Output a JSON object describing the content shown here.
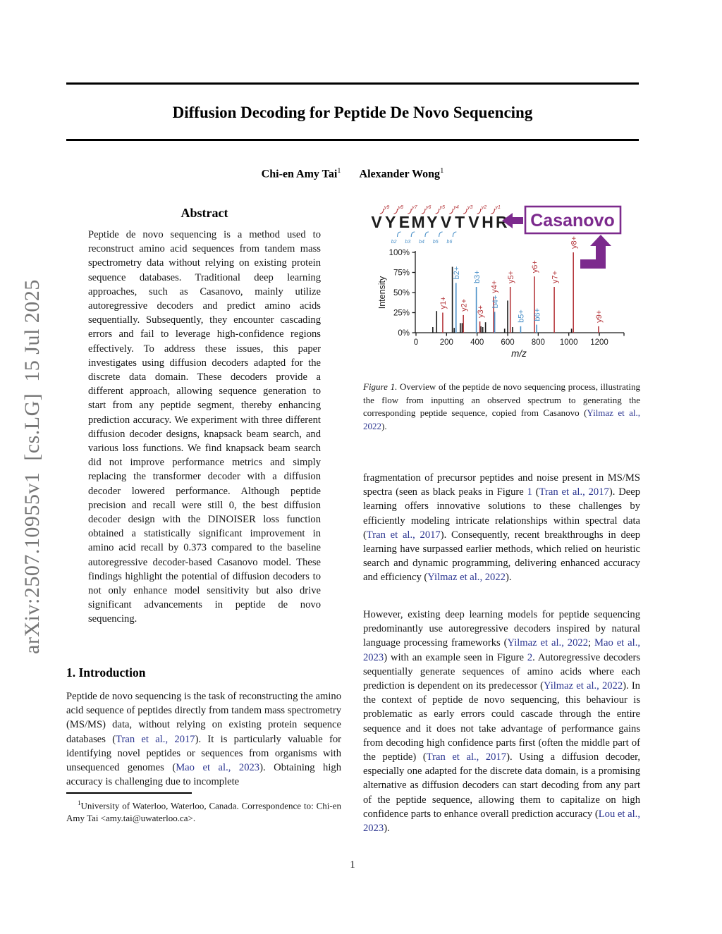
{
  "page": {
    "arxiv_watermark": "arXiv:2507.10955v1  [cs.LG]  15 Jul 2025",
    "page_number": "1"
  },
  "header": {
    "title": "Diffusion Decoding for Peptide De Novo Sequencing",
    "authors": [
      {
        "name": "Chi-en Amy Tai",
        "affiliation_mark": "1"
      },
      {
        "name": "Alexander Wong",
        "affiliation_mark": "1"
      }
    ]
  },
  "abstract": {
    "heading": "Abstract",
    "text": "Peptide de novo sequencing is a method used to reconstruct amino acid sequences from tandem mass spectrometry data without relying on existing protein sequence databases. Traditional deep learning approaches, such as Casanovo, mainly utilize autoregressive decoders and predict amino acids sequentially. Subsequently, they encounter cascading errors and fail to leverage high-confidence regions effectively. To address these issues, this paper investigates using diffusion decoders adapted for the discrete data domain. These decoders provide a different approach, allowing sequence generation to start from any peptide segment, thereby enhancing prediction accuracy. We experiment with three different diffusion decoder designs, knapsack beam search, and various loss functions. We find knapsack beam search did not improve performance metrics and simply replacing the transformer decoder with a diffusion decoder lowered performance. Although peptide precision and recall were still 0, the best diffusion decoder design with the DINOISER loss function obtained a statistically significant improvement in amino acid recall by 0.373 compared to the baseline autoregressive decoder-based Casanovo model. These findings highlight the potential of diffusion decoders to not only enhance model sensitivity but also drive significant advancements in peptide de novo sequencing."
  },
  "intro": {
    "heading": "1. Introduction",
    "p1": [
      {
        "t": "Peptide de novo sequencing is the task of reconstructing the amino acid sequence of peptides directly from tandem mass spectrometry (MS/MS) data, without relying on existing protein sequence databases ("
      },
      {
        "t": "Tran et al., 2017",
        "c": true
      },
      {
        "t": "). It is particularly valuable for identifying novel peptides or sequences from organisms with unsequenced genomes ("
      },
      {
        "t": "Mao et al., 2023",
        "c": true
      },
      {
        "t": "). Obtaining high accuracy is challenging due to incomplete"
      }
    ],
    "p2": [
      {
        "t": "fragmentation of precursor peptides and noise present in MS/MS spectra (seen as black peaks in Figure "
      },
      {
        "t": "1",
        "c": true
      },
      {
        "t": " ("
      },
      {
        "t": "Tran et al., 2017",
        "c": true
      },
      {
        "t": "). Deep learning offers innovative solutions to these challenges by efficiently modeling intricate relationships within spectral data ("
      },
      {
        "t": "Tran et al., 2017",
        "c": true
      },
      {
        "t": "). Consequently, recent breakthroughs in deep learning have surpassed earlier methods, which relied on heuristic search and dynamic programming, delivering enhanced accuracy and efficiency ("
      },
      {
        "t": "Yilmaz et al., 2022",
        "c": true
      },
      {
        "t": ")."
      }
    ],
    "p3": [
      {
        "t": "However, existing deep learning models for peptide sequencing predominantly use autoregressive decoders inspired by natural language processing frameworks ("
      },
      {
        "t": "Yilmaz et al., 2022",
        "c": true
      },
      {
        "t": "; "
      },
      {
        "t": "Mao et al., 2023",
        "c": true
      },
      {
        "t": ") with an example seen in Figure "
      },
      {
        "t": "2",
        "c": true
      },
      {
        "t": ". Autoregressive decoders sequentially generate sequences of amino acids where each prediction is dependent on its predecessor ("
      },
      {
        "t": "Yilmaz et al., 2022",
        "c": true
      },
      {
        "t": "). In the context of peptide de novo sequencing, this behaviour is problematic as early errors could cascade through the entire sequence and it does not take advantage of performance gains from decoding high confidence parts first (often the middle part of the peptide) ("
      },
      {
        "t": "Tran et al., 2017",
        "c": true
      },
      {
        "t": "). Using a diffusion decoder, especially one adapted for the discrete data domain, is a promising alternative as diffusion decoders can start decoding from any part of the peptide sequence, allowing them to capitalize on high confidence parts to enhance overall prediction accuracy ("
      },
      {
        "t": "Lou et al., 2023",
        "c": true
      },
      {
        "t": ")."
      }
    ]
  },
  "footnote": {
    "mark": "1",
    "segments": [
      {
        "t": "University of Waterloo, Waterloo, Canada. Correspondence to: Chi-en Amy Tai <amy.tai@uwaterloo.ca>."
      }
    ]
  },
  "figure": {
    "peptide": [
      "V",
      "Y",
      "E",
      "M",
      "Y",
      "V",
      "T",
      "V",
      "H",
      "R"
    ],
    "y_ion_marks": [
      "y9",
      "y8",
      "y7",
      "y6",
      "y5",
      "y4",
      "y3",
      "y2",
      "y1"
    ],
    "b_ion_marks": [
      "b2",
      "b3",
      "b4",
      "b5",
      "b6"
    ],
    "model_name": "Casanovo",
    "caption_label": "Figure 1.",
    "caption_segments": [
      {
        "t": " Overview of the peptide de novo sequencing process, illustrating the flow from inputting an observed spectrum to generating the corresponding peptide sequence, copied from Casanovo ("
      },
      {
        "t": "Yilmaz et al., 2022",
        "c": true
      },
      {
        "t": ")."
      }
    ]
  },
  "chart_data": {
    "type": "stem",
    "title": "",
    "xlabel": "m/z",
    "ylabel": "Intensity",
    "xlim": [
      0,
      1355
    ],
    "ylim": [
      0,
      100
    ],
    "grid": false,
    "xticks": [
      0,
      200,
      400,
      600,
      800,
      1000,
      1200
    ],
    "yticks": [
      {
        "v": 0,
        "label": "0%"
      },
      {
        "v": 25,
        "label": "25%"
      },
      {
        "v": 50,
        "label": "50%"
      },
      {
        "v": 75,
        "label": "75%"
      },
      {
        "v": 100,
        "label": "100%"
      }
    ],
    "series": [
      {
        "name": "noise-peaks",
        "color": "#1a1a1a",
        "peaks": [
          [
            110,
            7
          ],
          [
            135,
            27
          ],
          [
            238,
            82
          ],
          [
            250,
            6
          ],
          [
            290,
            12
          ],
          [
            302,
            12
          ],
          [
            425,
            8
          ],
          [
            437,
            7
          ],
          [
            455,
            13
          ],
          [
            580,
            5
          ],
          [
            600,
            40
          ],
          [
            632,
            7
          ],
          [
            1018,
            5
          ]
        ]
      },
      {
        "name": "y-ions",
        "color": "#b5373c",
        "peaks": [
          [
            175,
            25,
            "y1+"
          ],
          [
            310,
            22,
            "y2+"
          ],
          [
            418,
            14,
            "y3+"
          ],
          [
            508,
            45,
            "y4+"
          ],
          [
            617,
            57,
            "y5+"
          ],
          [
            775,
            70,
            "y6+"
          ],
          [
            905,
            57,
            "y7+"
          ],
          [
            1030,
            100,
            "y8+"
          ],
          [
            1195,
            8,
            "y9+"
          ]
        ]
      },
      {
        "name": "b-ions",
        "color": "#4a90c8",
        "peaks": [
          [
            262,
            62,
            "b2+"
          ],
          [
            395,
            57,
            "b3+"
          ],
          [
            515,
            26,
            "b4+"
          ],
          [
            685,
            8,
            "b5+"
          ],
          [
            790,
            10,
            "b6+"
          ]
        ]
      }
    ]
  },
  "colors": {
    "citation": "#2b3590",
    "purple": "#7c2a8d",
    "y_ion_red": "#b5373c",
    "b_ion_blue": "#4a90c8"
  }
}
